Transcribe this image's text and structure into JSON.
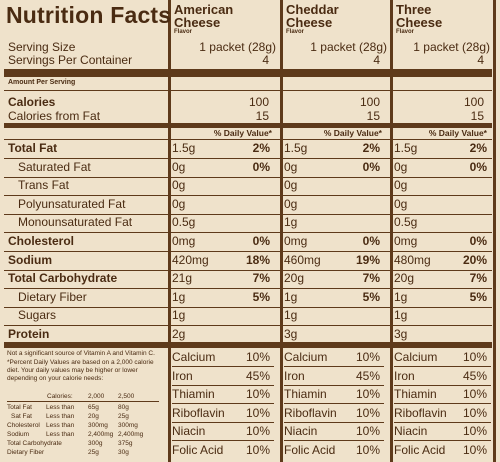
{
  "title": "Nutrition Facts",
  "flavors": [
    {
      "name_line1": "American",
      "name_line2": "Cheese",
      "flavor_label": "Flavor"
    },
    {
      "name_line1": "Cheddar",
      "name_line2": "Cheese",
      "flavor_label": "Flavor"
    },
    {
      "name_line1": "Three",
      "name_line2": "Cheese",
      "flavor_label": "Flavor"
    }
  ],
  "serving": {
    "serving_size_label": "Serving Size",
    "servings_label": "Servings Per Container",
    "serving_size": [
      "1 packet (28g)",
      "1 packet (28g)",
      "1 packet (28g)"
    ],
    "servings": [
      "4",
      "4",
      "4"
    ]
  },
  "amount_per_serving": "Amount Per Serving",
  "calories": {
    "label": "Calories",
    "fat_label": "Calories from Fat",
    "values": [
      "100",
      "100",
      "100"
    ],
    "fat_values": [
      "15",
      "15",
      "15"
    ]
  },
  "daily_value_header": "% Daily Value*",
  "nutrients": [
    {
      "label": "Total Fat",
      "bold": true,
      "values": [
        [
          "1.5g",
          "2%"
        ],
        [
          "1.5g",
          "2%"
        ],
        [
          "1.5g",
          "2%"
        ]
      ]
    },
    {
      "label": "Saturated Fat",
      "bold": false,
      "values": [
        [
          "0g",
          "0%"
        ],
        [
          "0g",
          "0%"
        ],
        [
          "0g",
          "0%"
        ]
      ]
    },
    {
      "label": "Trans Fat",
      "bold": false,
      "values": [
        [
          "0g",
          ""
        ],
        [
          "0g",
          ""
        ],
        [
          "0g",
          ""
        ]
      ]
    },
    {
      "label": "Polyunsaturated Fat",
      "bold": false,
      "values": [
        [
          "0g",
          ""
        ],
        [
          "0g",
          ""
        ],
        [
          "0g",
          ""
        ]
      ]
    },
    {
      "label": "Monounsaturated Fat",
      "bold": false,
      "values": [
        [
          "0.5g",
          ""
        ],
        [
          "1g",
          ""
        ],
        [
          "0.5g",
          ""
        ]
      ]
    },
    {
      "label": "Cholesterol",
      "bold": true,
      "values": [
        [
          "0mg",
          "0%"
        ],
        [
          "0mg",
          "0%"
        ],
        [
          "0mg",
          "0%"
        ]
      ]
    },
    {
      "label": "Sodium",
      "bold": true,
      "values": [
        [
          "420mg",
          "18%"
        ],
        [
          "460mg",
          "19%"
        ],
        [
          "480mg",
          "20%"
        ]
      ]
    },
    {
      "label": "Total Carbohydrate",
      "bold": true,
      "values": [
        [
          "21g",
          "7%"
        ],
        [
          "20g",
          "7%"
        ],
        [
          "20g",
          "7%"
        ]
      ]
    },
    {
      "label": "Dietary Fiber",
      "bold": false,
      "values": [
        [
          "1g",
          "5%"
        ],
        [
          "1g",
          "5%"
        ],
        [
          "1g",
          "5%"
        ]
      ]
    },
    {
      "label": "Sugars",
      "bold": false,
      "values": [
        [
          "1g",
          ""
        ],
        [
          "1g",
          ""
        ],
        [
          "1g",
          ""
        ]
      ]
    },
    {
      "label": "Protein",
      "bold": true,
      "values": [
        [
          "2g",
          ""
        ],
        [
          "3g",
          ""
        ],
        [
          "3g",
          ""
        ]
      ]
    }
  ],
  "vitamins": [
    {
      "label": "Calcium",
      "values": [
        "10%",
        "10%",
        "10%"
      ]
    },
    {
      "label": "Iron",
      "values": [
        "45%",
        "45%",
        "45%"
      ]
    },
    {
      "label": "Thiamin",
      "values": [
        "10%",
        "10%",
        "10%"
      ]
    },
    {
      "label": "Riboflavin",
      "values": [
        "10%",
        "10%",
        "10%"
      ]
    },
    {
      "label": "Niacin",
      "values": [
        "10%",
        "10%",
        "10%"
      ]
    },
    {
      "label": "Folic Acid",
      "values": [
        "10%",
        "10%",
        "10%"
      ]
    }
  ],
  "footnote": {
    "not_significant": "Not a significant source of Vitamin A and Vitamin C.",
    "percent_note": "*Percent Daily Values are based on a 2,000 calorie diet. Your daily values may be higher or lower depending on your calorie needs:",
    "header": [
      "Calories:",
      "2,000",
      "2,500"
    ],
    "rows": [
      [
        "Total Fat",
        "Less than",
        "65g",
        "80g"
      ],
      [
        "Sat Fat",
        "Less than",
        "20g",
        "25g"
      ],
      [
        "Cholesterol",
        "Less than",
        "300mg",
        "300mg"
      ],
      [
        "Sodium",
        "Less than",
        "2,400mg",
        "2,400mg"
      ],
      [
        "Total Carbohydrate",
        "",
        "300g",
        "375g"
      ],
      [
        "Dietary Fiber",
        "",
        "25g",
        "30g"
      ]
    ]
  },
  "colors": {
    "background": "#efe2cb",
    "ink": "#4a2b12",
    "rule": "#5e3a1b"
  }
}
